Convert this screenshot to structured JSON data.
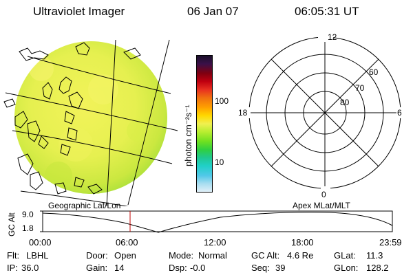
{
  "header": {
    "title": "Ultraviolet Imager",
    "date": "06 Jan 07",
    "time": "06:05:31 UT"
  },
  "colorbar": {
    "unit_label": "photon cm⁻²s⁻¹",
    "tick_100": "100",
    "tick_10": "10",
    "colors": [
      "#1a0f2a",
      "#3a1048",
      "#800010",
      "#c00010",
      "#e83020",
      "#f07010",
      "#ffa000",
      "#ffd800",
      "#f0f050",
      "#b8ee30",
      "#70e020",
      "#30d040",
      "#20c890",
      "#20d0c8",
      "#50c8e8",
      "#a8ddf0",
      "#e0f0f8"
    ]
  },
  "polar": {
    "mlt_top": "12",
    "mlt_left": "18",
    "mlt_right": "6",
    "mlt_bottom": "0",
    "lat_60": "60",
    "lat_70": "70",
    "lat_80": "80"
  },
  "image_labels": {
    "left": "Geographic Lat/Lon",
    "right": "Apex MLat/MLT"
  },
  "altitude_plot": {
    "axis_label": "GC Alt",
    "ymax": "9.0",
    "ymin": "1.8",
    "x_ticks": [
      "00:00",
      "06:00",
      "12:00",
      "18:00",
      "23:59"
    ]
  },
  "status": {
    "flt_label": "Flt:",
    "flt_value": "LBHL",
    "ip_label": "IP:",
    "ip_value": "36.0",
    "door_label": "Door:",
    "door_value": "Open",
    "gain_label": "Gain:",
    "gain_value": "14",
    "mode_label": "Mode:",
    "mode_value": "Normal",
    "dsp_label": "Dsp:",
    "dsp_value": "-0.0",
    "gcalt_label": "GC Alt:",
    "gcalt_value": "4.6 Re",
    "seq_label": "Seq:",
    "seq_value": "39",
    "glat_label": "GLat:",
    "glat_value": "11.3",
    "glon_label": "GLon:",
    "glon_value": "128.2"
  }
}
